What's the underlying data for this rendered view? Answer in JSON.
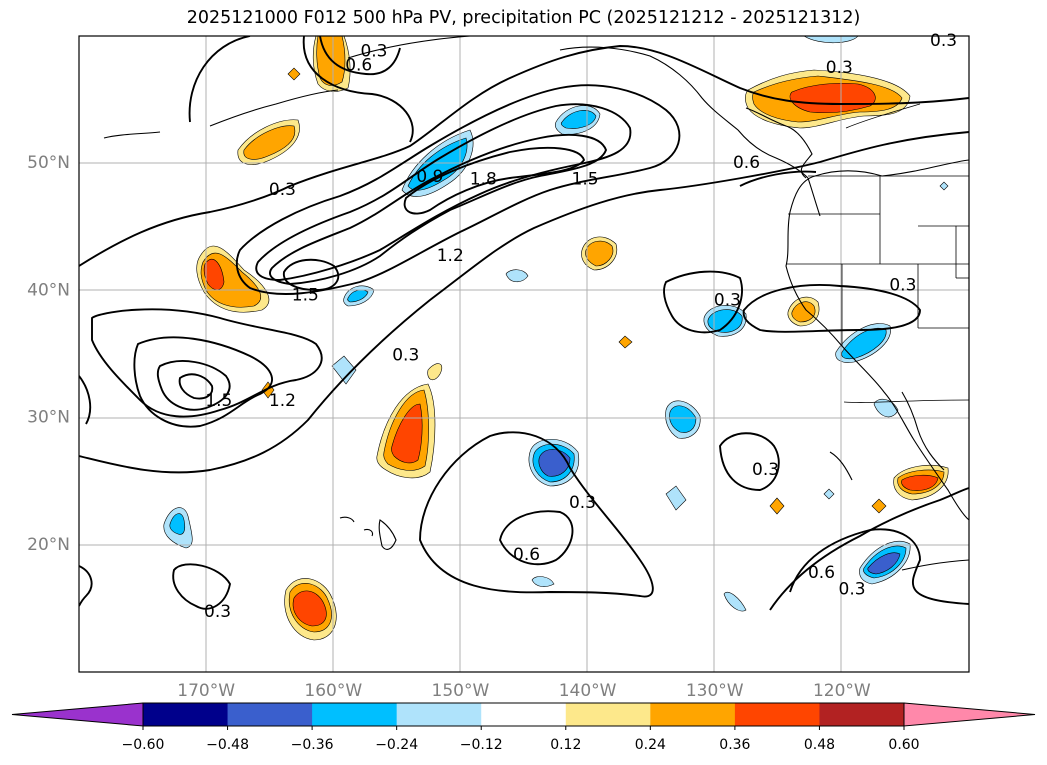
{
  "chart_data": {
    "type": "map",
    "title": "2025121000 F012 500 hPa PV, precipitation PC (2025121212 - 2025121312)",
    "lon_range": [
      -180,
      -110
    ],
    "lat_range": [
      10,
      60
    ],
    "grid": true,
    "lon_ticks": [
      {
        "value": -170,
        "label": "170°W"
      },
      {
        "value": -160,
        "label": "160°W"
      },
      {
        "value": -150,
        "label": "150°W"
      },
      {
        "value": -140,
        "label": "140°W"
      },
      {
        "value": -130,
        "label": "130°W"
      },
      {
        "value": -120,
        "label": "120°W"
      }
    ],
    "lat_ticks": [
      {
        "value": 20,
        "label": "20°N"
      },
      {
        "value": 30,
        "label": "30°N"
      },
      {
        "value": 40,
        "label": "40°N"
      },
      {
        "value": 50,
        "label": "50°N"
      }
    ],
    "colorbar": {
      "levels": [
        -0.6,
        -0.48,
        -0.36,
        -0.24,
        -0.12,
        0.12,
        0.24,
        0.36,
        0.48,
        0.6
      ],
      "tick_labels": [
        "−0.60",
        "−0.48",
        "−0.36",
        "−0.24",
        "−0.12",
        "0.12",
        "0.24",
        "0.36",
        "0.48",
        "0.60"
      ],
      "colors": [
        "#9a32cd",
        "#00008b",
        "#3a5fcd",
        "#00bfff",
        "#afe3fb",
        "#ffffff",
        "#fde88b",
        "#ffa500",
        "#ff4500",
        "#b22222",
        "#ff88aa"
      ],
      "extend": "both"
    },
    "pv_contour_levels": [
      0.3,
      0.6,
      0.9,
      1.2,
      1.5,
      1.8
    ],
    "contour_labels": [
      {
        "text": "0.3",
        "lon": -156.8,
        "lat": 58.8
      },
      {
        "text": "0.6",
        "lon": -158.0,
        "lat": 57.7
      },
      {
        "text": "0.3",
        "lon": -120.2,
        "lat": 57.5
      },
      {
        "text": "0.3",
        "lon": -112.0,
        "lat": 59.6
      },
      {
        "text": "0.3",
        "lon": -164.0,
        "lat": 47.9
      },
      {
        "text": "0.9",
        "lon": -152.4,
        "lat": 48.9
      },
      {
        "text": "1.8",
        "lon": -148.2,
        "lat": 48.7
      },
      {
        "text": "1.5",
        "lon": -140.2,
        "lat": 48.7
      },
      {
        "text": "0.6",
        "lon": -127.5,
        "lat": 50.0
      },
      {
        "text": "1.2",
        "lon": -150.8,
        "lat": 42.7
      },
      {
        "text": "1.5",
        "lon": -162.2,
        "lat": 39.6
      },
      {
        "text": "0.3",
        "lon": -129.0,
        "lat": 39.2
      },
      {
        "text": "0.3",
        "lon": -115.2,
        "lat": 40.4
      },
      {
        "text": "0.3",
        "lon": -154.3,
        "lat": 34.9
      },
      {
        "text": "1.5",
        "lon": -169.0,
        "lat": 31.3
      },
      {
        "text": "1.2",
        "lon": -164.0,
        "lat": 31.3
      },
      {
        "text": "0.3",
        "lon": -126.0,
        "lat": 25.9
      },
      {
        "text": "0.3",
        "lon": -140.4,
        "lat": 23.3
      },
      {
        "text": "0.6",
        "lon": -144.8,
        "lat": 19.2
      },
      {
        "text": "0.6",
        "lon": -121.6,
        "lat": 17.8
      },
      {
        "text": "0.3",
        "lon": -119.2,
        "lat": 16.5
      },
      {
        "text": "0.3",
        "lon": -169.1,
        "lat": 14.7
      }
    ]
  }
}
